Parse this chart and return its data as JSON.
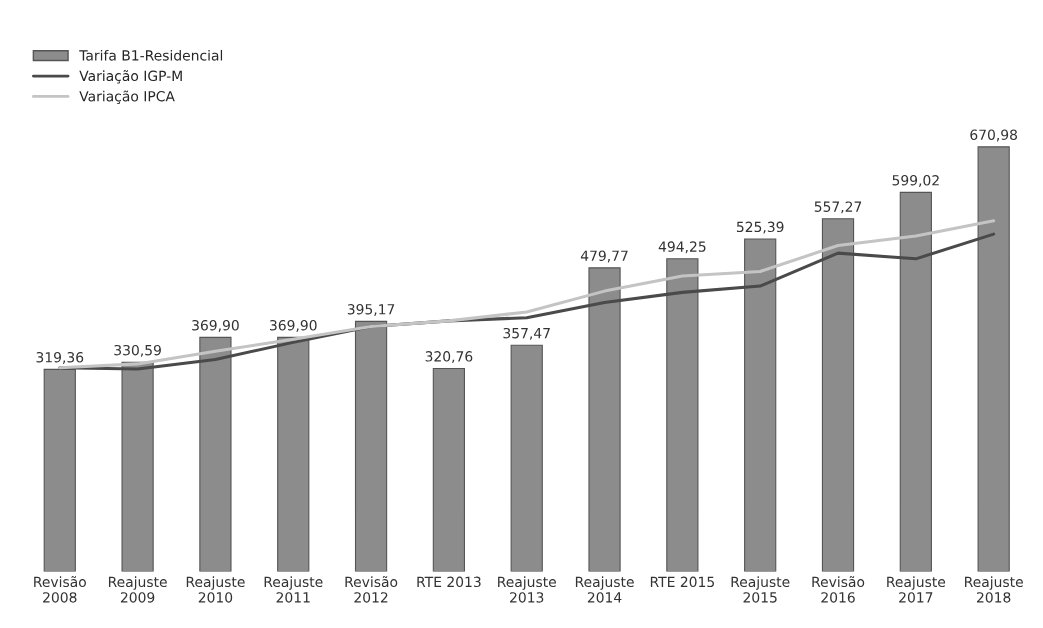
{
  "chart_data": {
    "type": "bar",
    "categories": [
      "Revisão\n2008",
      "Reajuste\n2009",
      "Reajuste\n2010",
      "Reajuste\n2011",
      "Revisão\n2012",
      "RTE 2013",
      "Reajuste\n2013",
      "Reajuste\n2014",
      "RTE 2015",
      "Reajuste\n2015",
      "Revisão\n2016",
      "Reajuste\n2017",
      "Reajuste\n2018"
    ],
    "series": [
      {
        "name": "Tarifa B1-Residencial",
        "color": "#8c8c8c",
        "values": [
          319.36,
          330.59,
          369.9,
          369.9,
          395.17,
          320.76,
          357.47,
          479.77,
          494.25,
          525.39,
          557.27,
          599.02,
          670.98
        ],
        "value_labels": [
          "319,36",
          "330,59",
          "369,90",
          "369,90",
          "395,17",
          "320,76",
          "357,47",
          "479,77",
          "494,25",
          "525,39",
          "557,27",
          "599,02",
          "670,98"
        ]
      },
      {
        "name": "Variação IGP-M",
        "type": "line",
        "color": "#4a4a4a",
        "values": [
          322,
          320,
          335,
          362,
          387,
          396,
          401,
          425,
          441,
          451,
          503,
          494,
          533
        ]
      },
      {
        "name": "Variação IPCA",
        "type": "line",
        "color": "#c4c4c4",
        "values": [
          322,
          328,
          348,
          367,
          387,
          396,
          410,
          443,
          467,
          474,
          515,
          530,
          554
        ]
      }
    ],
    "legend": "top left",
    "grid": false,
    "marker": "none",
    "line_style": "solid"
  }
}
